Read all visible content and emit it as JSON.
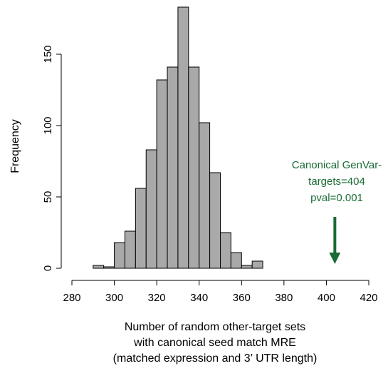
{
  "chart_data": {
    "type": "bar",
    "subtype": "histogram",
    "title": "",
    "xlabel_lines": [
      "Number of random other-target sets",
      "with canonical seed match MRE",
      "(matched expression and 3’ UTR length)"
    ],
    "ylabel": "Frequency",
    "xlim": [
      280,
      420
    ],
    "ylim": [
      0,
      185
    ],
    "x_ticks": [
      "280",
      "300",
      "320",
      "340",
      "360",
      "380",
      "400",
      "420"
    ],
    "y_ticks": [
      "0",
      "50",
      "100",
      "150"
    ],
    "bin_width": 5,
    "bins": [
      {
        "start": 290,
        "end": 295,
        "count": 2
      },
      {
        "start": 295,
        "end": 300,
        "count": 1
      },
      {
        "start": 300,
        "end": 305,
        "count": 18
      },
      {
        "start": 305,
        "end": 310,
        "count": 26
      },
      {
        "start": 310,
        "end": 315,
        "count": 56
      },
      {
        "start": 315,
        "end": 320,
        "count": 83
      },
      {
        "start": 320,
        "end": 325,
        "count": 132
      },
      {
        "start": 325,
        "end": 330,
        "count": 141
      },
      {
        "start": 330,
        "end": 335,
        "count": 183
      },
      {
        "start": 335,
        "end": 340,
        "count": 141
      },
      {
        "start": 340,
        "end": 345,
        "count": 102
      },
      {
        "start": 345,
        "end": 350,
        "count": 67
      },
      {
        "start": 350,
        "end": 355,
        "count": 25
      },
      {
        "start": 355,
        "end": 360,
        "count": 11
      },
      {
        "start": 360,
        "end": 365,
        "count": 2
      },
      {
        "start": 365,
        "end": 370,
        "count": 5
      }
    ],
    "annotation": {
      "lines": [
        "Canonical GenVar-",
        "targets=404",
        "pval=0.001"
      ],
      "x_value": 404,
      "arrow_from_y": 36,
      "arrow_to_y": 3,
      "color": "#1a6b35"
    },
    "bar_fill": "#a9a9a9",
    "bar_stroke": "#000000",
    "grid": false
  }
}
